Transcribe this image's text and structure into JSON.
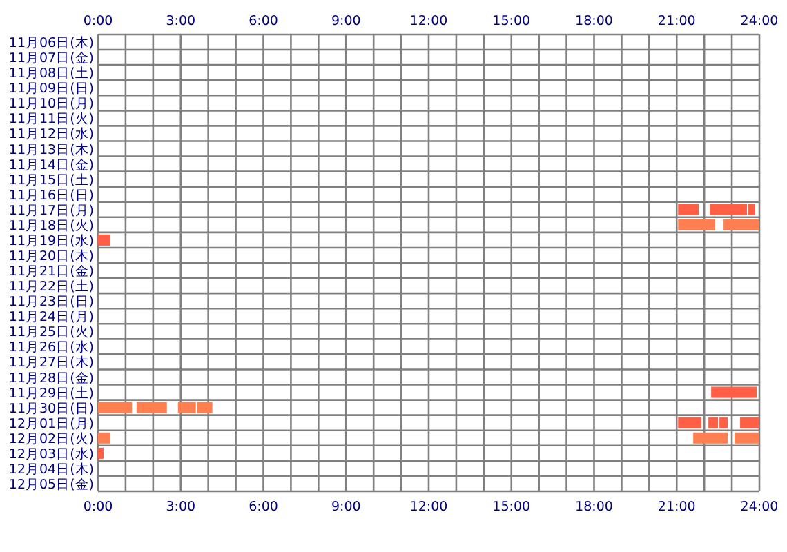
{
  "chart_data": {
    "type": "bar",
    "orientation": "horizontal",
    "grid": true,
    "categories": [
      "11月06日(木)",
      "11月07日(金)",
      "11月08日(土)",
      "11月09日(日)",
      "11月10日(月)",
      "11月11日(火)",
      "11月12日(水)",
      "11月13日(木)",
      "11月14日(金)",
      "11月15日(土)",
      "11月16日(日)",
      "11月17日(月)",
      "11月18日(火)",
      "11月19日(水)",
      "11月20日(木)",
      "11月21日(金)",
      "11月22日(土)",
      "11月23日(日)",
      "11月24日(月)",
      "11月25日(火)",
      "11月26日(水)",
      "11月27日(木)",
      "11月28日(金)",
      "11月29日(土)",
      "11月30日(日)",
      "12月01日(月)",
      "12月02日(火)",
      "12月03日(水)",
      "12月04日(木)",
      "12月05日(金)"
    ],
    "xlim": [
      0,
      24
    ],
    "xticks": [
      {
        "value": 0,
        "label": "0:00"
      },
      {
        "value": 1,
        "label": null
      },
      {
        "value": 2,
        "label": null
      },
      {
        "value": 3,
        "label": "3:00"
      },
      {
        "value": 4,
        "label": null
      },
      {
        "value": 5,
        "label": null
      },
      {
        "value": 6,
        "label": "6:00"
      },
      {
        "value": 7,
        "label": null
      },
      {
        "value": 8,
        "label": null
      },
      {
        "value": 9,
        "label": "9:00"
      },
      {
        "value": 10,
        "label": null
      },
      {
        "value": 11,
        "label": null
      },
      {
        "value": 12,
        "label": "12:00"
      },
      {
        "value": 13,
        "label": null
      },
      {
        "value": 14,
        "label": null
      },
      {
        "value": 15,
        "label": "15:00"
      },
      {
        "value": 16,
        "label": null
      },
      {
        "value": 17,
        "label": null
      },
      {
        "value": 18,
        "label": "18:00"
      },
      {
        "value": 19,
        "label": null
      },
      {
        "value": 20,
        "label": null
      },
      {
        "value": 21,
        "label": "21:00"
      },
      {
        "value": 22,
        "label": null
      },
      {
        "value": 23,
        "label": null
      },
      {
        "value": 24,
        "label": "24:00"
      }
    ],
    "x2lim": [
      0,
      24
    ],
    "x2ticks": [
      {
        "value": 0,
        "label": "0:00"
      },
      {
        "value": 3,
        "label": "3:00"
      },
      {
        "value": 6,
        "label": "6:00"
      },
      {
        "value": 9,
        "label": "9:00"
      },
      {
        "value": 12,
        "label": "12:00"
      },
      {
        "value": 15,
        "label": "15:00"
      },
      {
        "value": 18,
        "label": "18:00"
      },
      {
        "value": 21,
        "label": "21:00"
      },
      {
        "value": 24,
        "label": "24:00"
      }
    ],
    "series": [
      {
        "values": [
          null,
          null,
          null,
          null,
          null,
          null,
          null,
          null,
          null,
          null,
          null,
          0.75,
          1.35,
          0.45,
          null,
          null,
          null,
          null,
          null,
          null,
          null,
          null,
          null,
          1.65,
          1.23,
          0.85,
          0.45,
          0.2,
          null,
          null
        ],
        "base": [
          null,
          null,
          null,
          null,
          null,
          null,
          null,
          null,
          null,
          null,
          null,
          21.05,
          21.05,
          0,
          null,
          null,
          null,
          null,
          null,
          null,
          null,
          null,
          null,
          22.25,
          0,
          21.05,
          0,
          0,
          null,
          null
        ],
        "colors": [
          null,
          null,
          null,
          null,
          null,
          null,
          null,
          null,
          null,
          null,
          null,
          "#ff5f45",
          "#ff7f50",
          "#ff5f45",
          null,
          null,
          null,
          null,
          null,
          null,
          null,
          null,
          null,
          "#ff5f45",
          "#ff7f50",
          "#ff5f45",
          "#ff7f50",
          "#ff5f45",
          null,
          null
        ]
      },
      {
        "values": [
          null,
          null,
          null,
          null,
          null,
          null,
          null,
          null,
          null,
          null,
          null,
          1.35,
          1.3,
          null,
          null,
          null,
          null,
          null,
          null,
          null,
          null,
          null,
          null,
          null,
          1.1,
          0.35,
          1.25,
          null,
          null,
          null
        ],
        "base": [
          null,
          null,
          null,
          null,
          null,
          null,
          null,
          null,
          null,
          null,
          null,
          22.2,
          22.7,
          null,
          null,
          null,
          null,
          null,
          null,
          null,
          null,
          null,
          null,
          null,
          1.4,
          22.15,
          21.6,
          null,
          null,
          null
        ],
        "colors": [
          null,
          null,
          null,
          null,
          null,
          null,
          null,
          null,
          null,
          null,
          null,
          "#ff5f45",
          "#ff7f50",
          null,
          null,
          null,
          null,
          null,
          null,
          null,
          null,
          null,
          null,
          null,
          "#ff7f50",
          "#ff5f45",
          "#ff7f50",
          null,
          null,
          null
        ]
      },
      {
        "values": [
          null,
          null,
          null,
          null,
          null,
          null,
          null,
          null,
          null,
          null,
          null,
          0.25,
          null,
          null,
          null,
          null,
          null,
          null,
          null,
          null,
          null,
          null,
          null,
          null,
          0.65,
          0.3,
          0.9,
          null,
          null,
          null
        ],
        "base": [
          null,
          null,
          null,
          null,
          null,
          null,
          null,
          null,
          null,
          null,
          null,
          23.6,
          null,
          null,
          null,
          null,
          null,
          null,
          null,
          null,
          null,
          null,
          null,
          null,
          2.9,
          22.55,
          23.1,
          null,
          null,
          null
        ],
        "colors": [
          null,
          null,
          null,
          null,
          null,
          null,
          null,
          null,
          null,
          null,
          null,
          "#ff5f45",
          null,
          null,
          null,
          null,
          null,
          null,
          null,
          null,
          null,
          null,
          null,
          null,
          "#ff7f50",
          "#ff5f45",
          "#ff7f50",
          null,
          null,
          null
        ]
      },
      {
        "values": [
          null,
          null,
          null,
          null,
          null,
          null,
          null,
          null,
          null,
          null,
          null,
          null,
          null,
          null,
          null,
          null,
          null,
          null,
          null,
          null,
          null,
          null,
          null,
          null,
          0.55,
          0.7,
          null,
          null,
          null,
          null
        ],
        "base": [
          null,
          null,
          null,
          null,
          null,
          null,
          null,
          null,
          null,
          null,
          null,
          null,
          null,
          null,
          null,
          null,
          null,
          null,
          null,
          null,
          null,
          null,
          null,
          null,
          3.6,
          23.3,
          null,
          null,
          null,
          null
        ],
        "colors": [
          null,
          null,
          null,
          null,
          null,
          null,
          null,
          null,
          null,
          null,
          null,
          null,
          null,
          null,
          null,
          null,
          null,
          null,
          null,
          null,
          null,
          null,
          null,
          null,
          "#ff7f50",
          "#ff5f45",
          null,
          null,
          null,
          null
        ]
      }
    ]
  }
}
